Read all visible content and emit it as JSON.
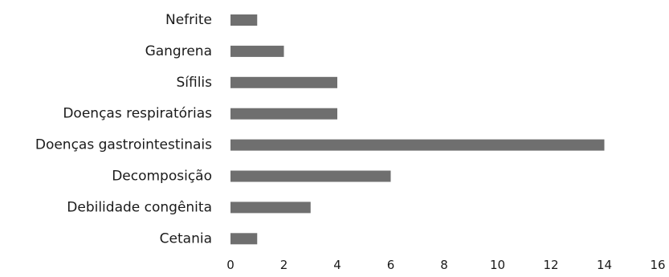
{
  "chart_data": {
    "type": "bar",
    "orientation": "horizontal",
    "categories": [
      "Nefrite",
      "Gangrena",
      "Sífilis",
      "Doenças respiratórias",
      "Doenças gastrointestinais",
      "Decomposição",
      "Debilidade congênita",
      "Cetania"
    ],
    "values": [
      1,
      2,
      4,
      4,
      14,
      6,
      3,
      1
    ],
    "xlim": [
      0,
      16
    ],
    "xticks": [
      0,
      2,
      4,
      6,
      8,
      10,
      12,
      14,
      16
    ],
    "grid": false,
    "legend": "none",
    "bar_color": "#6f6f6f"
  }
}
